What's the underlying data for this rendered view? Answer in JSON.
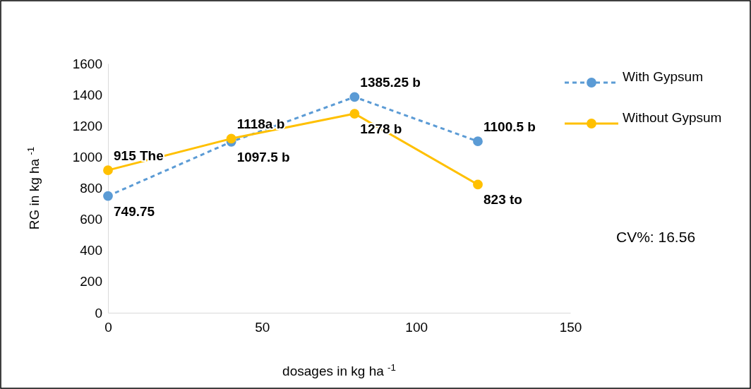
{
  "chart_data": {
    "type": "line",
    "xlabel": "dosages in kg ha $^{-1}$",
    "ylabel": "RG in kg ha $^{-1}$",
    "xlim": [
      0,
      150
    ],
    "xticks": [
      0,
      50,
      100,
      150
    ],
    "ylim": [
      0,
      1600
    ],
    "yticks": [
      0,
      200,
      400,
      600,
      800,
      1000,
      1200,
      1400,
      1600
    ],
    "x": [
      0,
      40,
      80,
      120
    ],
    "series": [
      {
        "name": "With Gypsum",
        "color": "#5b9bd5",
        "line_style": "dashed",
        "values": [
          749.75,
          1097.5,
          1385.25,
          1100.5
        ],
        "value_labels": [
          "749.75",
          "1097.5 b",
          "1385.25 b",
          "1100.5 b"
        ]
      },
      {
        "name": "Without Gypsum",
        "color": "#ffc000",
        "line_style": "solid",
        "values": [
          915,
          1118,
          1278,
          823
        ],
        "value_labels": [
          "915 The",
          "1118a b",
          "1278 b",
          "823 to"
        ]
      }
    ],
    "marker": "circle",
    "grid": false,
    "legend": "right",
    "annotations": [
      "CV%: 16.56"
    ]
  }
}
